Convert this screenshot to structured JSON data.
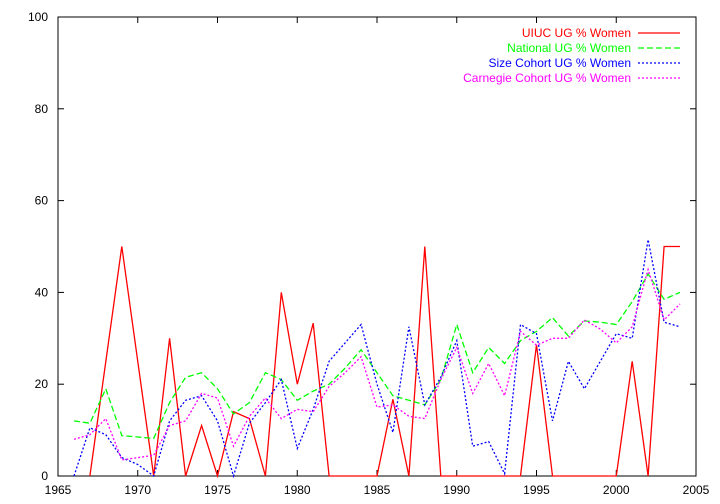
{
  "chart_data": {
    "type": "line",
    "title": "",
    "xlabel": "",
    "ylabel": "",
    "xlim": [
      1965,
      2005
    ],
    "ylim": [
      0,
      100
    ],
    "xticks": [
      1965,
      1970,
      1975,
      1980,
      1985,
      1990,
      1995,
      2000,
      2005
    ],
    "yticks": [
      0,
      20,
      40,
      60,
      80,
      100
    ],
    "grid": false,
    "legend_position": "top-right",
    "series": [
      {
        "name": "UIUC UG % Women",
        "color": "#ff0000",
        "dash": "solid",
        "x": [
          1967,
          1969,
          1971,
          1972,
          1973,
          1974,
          1975,
          1976,
          1977,
          1978,
          1979,
          1980,
          1981,
          1982,
          1983,
          1984,
          1985,
          1986,
          1987,
          1988,
          1989,
          1990,
          1991,
          1992,
          1993,
          1994,
          1995,
          1996,
          1997,
          1998,
          1999,
          2000,
          2001,
          2002,
          2003,
          2004
        ],
        "y": [
          0,
          50,
          0,
          30,
          0,
          11,
          0,
          14,
          12.5,
          0,
          40,
          20,
          33.3,
          0,
          0,
          0,
          0,
          16.7,
          0,
          50,
          0,
          0,
          0,
          0,
          0,
          0,
          28.6,
          0,
          0,
          0,
          0,
          0,
          25,
          0,
          50,
          50
        ]
      },
      {
        "name": "National UG % Women",
        "color": "#00ff00",
        "dash": "dashed",
        "x": [
          1966,
          1967,
          1968,
          1969,
          1970,
          1971,
          1972,
          1973,
          1974,
          1975,
          1976,
          1977,
          1978,
          1979,
          1980,
          1981,
          1982,
          1983,
          1984,
          1985,
          1986,
          1987,
          1988,
          1989,
          1990,
          1991,
          1992,
          1993,
          1994,
          1995,
          1996,
          1997,
          1998,
          1999,
          2000,
          2001,
          2002,
          2003,
          2004
        ],
        "y": [
          12,
          11.5,
          19,
          8.8,
          8.5,
          8.2,
          16,
          21.5,
          22.5,
          19,
          13.5,
          16,
          22.5,
          21,
          16.5,
          18.5,
          20,
          23.5,
          27.5,
          22.5,
          17.5,
          16.5,
          15.5,
          21,
          33,
          22.5,
          28,
          24.5,
          29.5,
          31.5,
          34.5,
          30.5,
          33.8,
          33.5,
          33,
          38,
          44,
          38.5,
          40
        ]
      },
      {
        "name": "Size Cohort UG % Women",
        "color": "#0000ff",
        "dash": "dotted",
        "x": [
          1966,
          1967,
          1968,
          1969,
          1970,
          1971,
          1972,
          1973,
          1974,
          1975,
          1976,
          1977,
          1978,
          1979,
          1980,
          1981,
          1982,
          1983,
          1984,
          1985,
          1986,
          1987,
          1988,
          1989,
          1990,
          1991,
          1992,
          1993,
          1994,
          1995,
          1996,
          1997,
          1998,
          1999,
          2000,
          2001,
          2002,
          2003,
          2004
        ],
        "y": [
          0,
          10.5,
          9,
          4,
          2.5,
          0,
          12,
          16.5,
          17.5,
          12,
          0,
          11.5,
          16,
          21,
          6,
          14.5,
          25,
          29,
          33,
          20,
          9.5,
          32.5,
          15.5,
          21.5,
          29.5,
          6.5,
          7.5,
          0.5,
          33,
          31,
          12,
          25,
          19,
          25,
          31,
          30,
          51.5,
          33.5,
          32.5
        ]
      },
      {
        "name": "Carnegie Cohort UG % Women",
        "color": "#ff00ff",
        "dash": "dotted",
        "x": [
          1966,
          1967,
          1968,
          1969,
          1970,
          1971,
          1972,
          1973,
          1974,
          1975,
          1976,
          1977,
          1978,
          1979,
          1980,
          1981,
          1982,
          1983,
          1984,
          1985,
          1986,
          1987,
          1988,
          1989,
          1990,
          1991,
          1992,
          1993,
          1994,
          1995,
          1996,
          1997,
          1998,
          1999,
          2000,
          2001,
          2002,
          2003,
          2004
        ],
        "y": [
          8,
          9,
          12.5,
          3.5,
          4,
          4.5,
          11,
          12,
          18,
          17,
          6.5,
          13,
          17,
          12.5,
          14.5,
          14,
          19.5,
          22.5,
          26,
          15,
          15.5,
          13,
          12.5,
          21,
          28,
          18,
          24.5,
          17.5,
          31.5,
          28.5,
          30,
          30,
          34,
          32,
          29,
          32.5,
          45,
          34,
          37.5
        ]
      }
    ]
  }
}
